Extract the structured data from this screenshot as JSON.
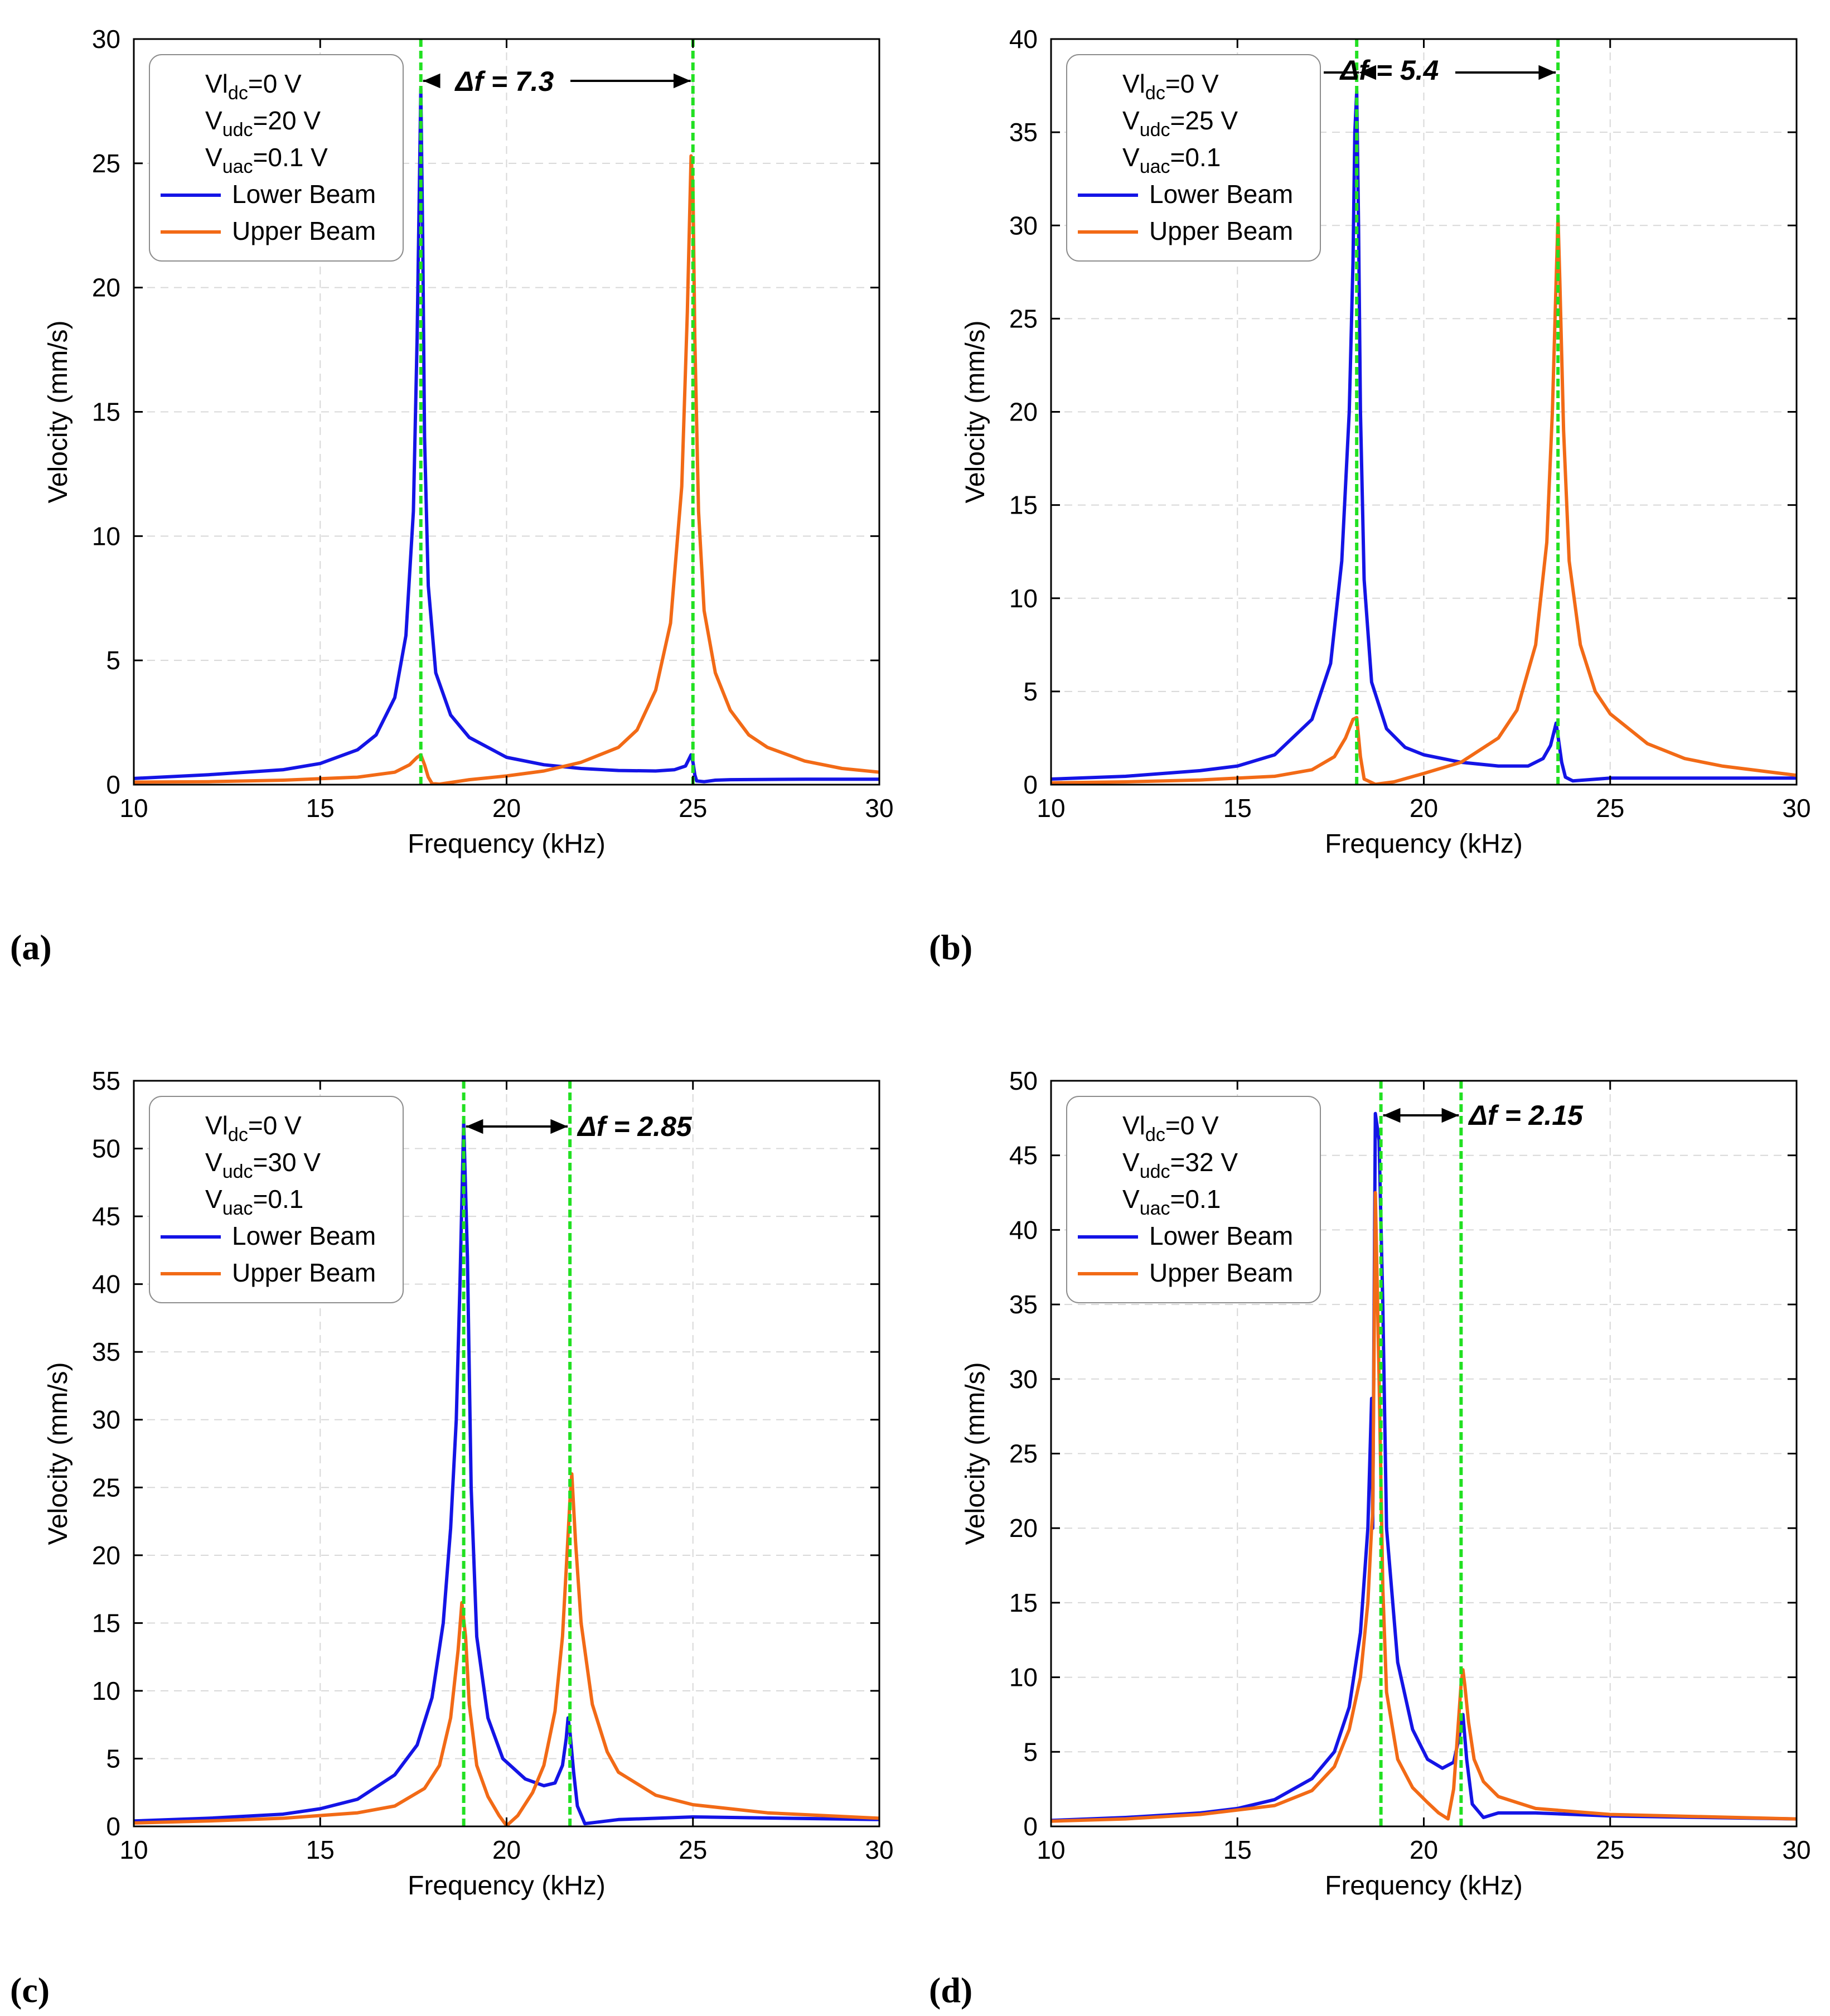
{
  "figure": {
    "panels": [
      "a",
      "b",
      "c",
      "d"
    ]
  },
  "colors": {
    "lower_beam": "#1414e6",
    "upper_beam": "#f26a16",
    "marker": "#22e022",
    "grid": "#d8d8d8"
  },
  "chart_data": [
    {
      "panel": "a",
      "panel_label": "(a)",
      "type": "line",
      "xlabel": "Frequency (kHz)",
      "ylabel": "Velocity (mm/s)",
      "xlim": [
        10,
        30
      ],
      "ylim": [
        0,
        30
      ],
      "xticks": [
        10,
        15,
        20,
        25,
        30
      ],
      "yticks": [
        0,
        5,
        10,
        15,
        20,
        25,
        30
      ],
      "grid": true,
      "legend_position": "top-left",
      "annotations": [
        {
          "base": "Vl",
          "sub": "dc",
          "value": "=0 V"
        },
        {
          "base": "V",
          "sub": "udc",
          "value": "=20 V"
        },
        {
          "base": "V",
          "sub": "uac",
          "value": "=0.1 V"
        }
      ],
      "delta_label": "Δf = 7.3",
      "markers": [
        17.7,
        25.0
      ],
      "series": [
        {
          "name": "Lower Beam",
          "color": "#1414e6",
          "x": [
            10,
            12,
            14,
            15,
            16,
            16.5,
            17,
            17.3,
            17.5,
            17.6,
            17.65,
            17.7,
            17.75,
            17.8,
            17.9,
            18.1,
            18.5,
            19,
            20,
            21,
            22,
            23,
            24,
            24.5,
            24.8,
            24.9,
            24.95,
            25.0,
            25.05,
            25.1,
            25.3,
            25.6,
            26,
            28,
            30
          ],
          "values": [
            0.25,
            0.4,
            0.6,
            0.85,
            1.4,
            2.0,
            3.5,
            6.0,
            11.0,
            18.0,
            23.0,
            28.0,
            22.0,
            14.0,
            8.0,
            4.5,
            2.8,
            1.9,
            1.1,
            0.8,
            0.65,
            0.57,
            0.55,
            0.6,
            0.75,
            1.05,
            1.2,
            0.9,
            0.4,
            0.15,
            0.12,
            0.18,
            0.2,
            0.22,
            0.22
          ]
        },
        {
          "name": "Upper Beam",
          "color": "#f26a16",
          "x": [
            10,
            12,
            14,
            16,
            17,
            17.4,
            17.6,
            17.7,
            17.8,
            17.9,
            18.0,
            18.2,
            19,
            20,
            21,
            22,
            23,
            23.5,
            24,
            24.4,
            24.7,
            24.85,
            24.95,
            25.0,
            25.05,
            25.15,
            25.3,
            25.6,
            26,
            26.5,
            27,
            28,
            29,
            30
          ],
          "values": [
            0.1,
            0.12,
            0.18,
            0.3,
            0.5,
            0.8,
            1.1,
            1.2,
            0.8,
            0.3,
            0.05,
            0.02,
            0.2,
            0.35,
            0.55,
            0.9,
            1.5,
            2.2,
            3.8,
            6.5,
            12.0,
            19.0,
            25.3,
            24.0,
            18.0,
            11.0,
            7.0,
            4.5,
            3.0,
            2.0,
            1.5,
            0.95,
            0.65,
            0.5
          ]
        }
      ]
    },
    {
      "panel": "b",
      "panel_label": "(b)",
      "type": "line",
      "xlabel": "Frequency (kHz)",
      "ylabel": "Velocity (mm/s)",
      "xlim": [
        10,
        30
      ],
      "ylim": [
        0,
        40
      ],
      "xticks": [
        10,
        15,
        20,
        25,
        30
      ],
      "yticks": [
        0,
        5,
        10,
        15,
        20,
        25,
        30,
        35,
        40
      ],
      "grid": true,
      "legend_position": "top-left",
      "annotations": [
        {
          "base": "Vl",
          "sub": "dc",
          "value": "=0 V"
        },
        {
          "base": "V",
          "sub": "udc",
          "value": "=25 V"
        },
        {
          "base": "V",
          "sub": "uac",
          "value": "=0.1"
        }
      ],
      "delta_label": "Δf = 5.4",
      "markers": [
        18.2,
        23.6
      ],
      "series": [
        {
          "name": "Lower Beam",
          "color": "#1414e6",
          "x": [
            10,
            12,
            14,
            15,
            16,
            17,
            17.5,
            17.8,
            18.0,
            18.1,
            18.15,
            18.2,
            18.25,
            18.3,
            18.4,
            18.6,
            19,
            19.5,
            20,
            21,
            22,
            22.8,
            23.2,
            23.4,
            23.5,
            23.55,
            23.6,
            23.7,
            23.8,
            24,
            25,
            30
          ],
          "values": [
            0.3,
            0.45,
            0.75,
            1.0,
            1.6,
            3.5,
            6.5,
            12.0,
            20.0,
            28.0,
            35.0,
            37.2,
            30.0,
            20.0,
            11.0,
            5.5,
            3.0,
            2.0,
            1.6,
            1.2,
            1.0,
            1.0,
            1.4,
            2.1,
            2.9,
            3.3,
            2.6,
            1.2,
            0.4,
            0.2,
            0.35,
            0.35
          ]
        },
        {
          "name": "Upper Beam",
          "color": "#f26a16",
          "x": [
            10,
            12,
            14,
            16,
            17,
            17.6,
            17.9,
            18.1,
            18.2,
            18.3,
            18.4,
            18.7,
            19.2,
            20,
            21,
            22,
            22.5,
            23.0,
            23.3,
            23.45,
            23.55,
            23.6,
            23.65,
            23.75,
            23.9,
            24.2,
            24.6,
            25,
            26,
            27,
            28,
            30
          ],
          "values": [
            0.1,
            0.15,
            0.25,
            0.45,
            0.8,
            1.5,
            2.5,
            3.5,
            3.6,
            1.5,
            0.3,
            0.02,
            0.15,
            0.6,
            1.2,
            2.5,
            4.0,
            7.5,
            13.0,
            20.0,
            27.0,
            30.5,
            27.0,
            19.0,
            12.0,
            7.5,
            5.0,
            3.8,
            2.2,
            1.4,
            1.0,
            0.5
          ]
        }
      ]
    },
    {
      "panel": "c",
      "panel_label": "(c)",
      "type": "line",
      "xlabel": "Frequency (kHz)",
      "ylabel": "Velocity (mm/s)",
      "xlim": [
        10,
        30
      ],
      "ylim": [
        0,
        55
      ],
      "xticks": [
        10,
        15,
        20,
        25,
        30
      ],
      "yticks": [
        0,
        5,
        10,
        15,
        20,
        25,
        30,
        35,
        40,
        45,
        50,
        55
      ],
      "grid": true,
      "legend_position": "top-left",
      "annotations": [
        {
          "base": "Vl",
          "sub": "dc",
          "value": "=0 V"
        },
        {
          "base": "V",
          "sub": "udc",
          "value": "=30 V"
        },
        {
          "base": "V",
          "sub": "uac",
          "value": "=0.1"
        }
      ],
      "delta_label": "Δf = 2.85",
      "markers": [
        18.85,
        21.7
      ],
      "series": [
        {
          "name": "Lower Beam",
          "color": "#1414e6",
          "x": [
            10,
            12,
            14,
            15,
            16,
            17,
            17.6,
            18.0,
            18.3,
            18.5,
            18.65,
            18.75,
            18.85,
            18.95,
            19.05,
            19.2,
            19.5,
            19.9,
            20.5,
            21.0,
            21.3,
            21.5,
            21.6,
            21.65,
            21.7,
            21.8,
            21.9,
            22.1,
            22.4,
            23,
            25,
            30
          ],
          "values": [
            0.4,
            0.6,
            0.9,
            1.3,
            2.0,
            3.8,
            6.0,
            9.5,
            15.0,
            22.0,
            30.0,
            40.0,
            52.0,
            42.0,
            25.0,
            14.0,
            8.0,
            5.0,
            3.5,
            3.0,
            3.2,
            4.5,
            6.5,
            8.0,
            7.0,
            4.0,
            1.5,
            0.2,
            0.3,
            0.5,
            0.7,
            0.5
          ]
        },
        {
          "name": "Upper Beam",
          "color": "#f26a16",
          "x": [
            10,
            12,
            14,
            16,
            17,
            17.8,
            18.2,
            18.5,
            18.7,
            18.8,
            18.9,
            19.0,
            19.2,
            19.5,
            19.8,
            20.0,
            20.3,
            20.7,
            21.0,
            21.3,
            21.5,
            21.6,
            21.7,
            21.75,
            21.85,
            22.0,
            22.3,
            22.7,
            23,
            24,
            25,
            27,
            30
          ],
          "values": [
            0.25,
            0.4,
            0.6,
            1.0,
            1.5,
            2.8,
            4.5,
            8.0,
            13.0,
            16.5,
            14.0,
            9.0,
            4.5,
            2.2,
            0.8,
            0.05,
            0.8,
            2.5,
            4.5,
            8.5,
            14.0,
            19.0,
            24.0,
            26.0,
            21.0,
            15.0,
            9.0,
            5.5,
            4.0,
            2.3,
            1.6,
            1.0,
            0.6
          ]
        }
      ]
    },
    {
      "panel": "d",
      "panel_label": "(d)",
      "type": "line",
      "xlabel": "Frequency (kHz)",
      "ylabel": "Velocity (mm/s)",
      "xlim": [
        10,
        30
      ],
      "ylim": [
        0,
        50
      ],
      "xticks": [
        10,
        15,
        20,
        25,
        30
      ],
      "yticks": [
        0,
        5,
        10,
        15,
        20,
        25,
        30,
        35,
        40,
        45,
        50
      ],
      "grid": true,
      "legend_position": "top-left",
      "annotations": [
        {
          "base": "Vl",
          "sub": "dc",
          "value": "=0 V"
        },
        {
          "base": "V",
          "sub": "udc",
          "value": "=32 V"
        },
        {
          "base": "V",
          "sub": "uac",
          "value": "=0.1"
        }
      ],
      "delta_label": "Δf = 2.15",
      "markers": [
        18.85,
        21.0
      ],
      "series": [
        {
          "name": "Lower Beam",
          "color": "#1414e6",
          "x": [
            10,
            12,
            14,
            15,
            16,
            17,
            17.6,
            18.0,
            18.3,
            18.5,
            18.6,
            18.63,
            18.7,
            18.8,
            18.9,
            19.0,
            19.3,
            19.7,
            20.1,
            20.5,
            20.8,
            20.95,
            21.05,
            21.15,
            21.3,
            21.6,
            22,
            23,
            25,
            30
          ],
          "values": [
            0.4,
            0.6,
            0.9,
            1.2,
            1.8,
            3.2,
            5.0,
            8.0,
            13.0,
            20.0,
            28.7,
            20.0,
            47.8,
            46.0,
            35.0,
            20.0,
            11.0,
            6.5,
            4.5,
            3.9,
            4.3,
            6.0,
            7.5,
            4.5,
            1.5,
            0.6,
            0.9,
            0.9,
            0.7,
            0.5
          ]
        },
        {
          "name": "Upper Beam",
          "color": "#f26a16",
          "x": [
            10,
            12,
            14,
            16,
            17,
            17.6,
            18.0,
            18.3,
            18.5,
            18.6,
            18.63,
            18.7,
            18.8,
            18.9,
            19.0,
            19.3,
            19.7,
            20.1,
            20.4,
            20.65,
            20.8,
            20.9,
            21.0,
            21.05,
            21.1,
            21.2,
            21.35,
            21.6,
            22,
            23,
            25,
            30
          ],
          "values": [
            0.35,
            0.5,
            0.8,
            1.4,
            2.4,
            4.0,
            6.5,
            10.0,
            15.0,
            20.0,
            21.0,
            42.5,
            30.0,
            16.0,
            9.0,
            4.5,
            2.6,
            1.6,
            0.9,
            0.5,
            2.5,
            6.0,
            9.5,
            10.5,
            9.5,
            7.0,
            4.5,
            3.0,
            2.0,
            1.2,
            0.8,
            0.5
          ]
        }
      ]
    }
  ]
}
